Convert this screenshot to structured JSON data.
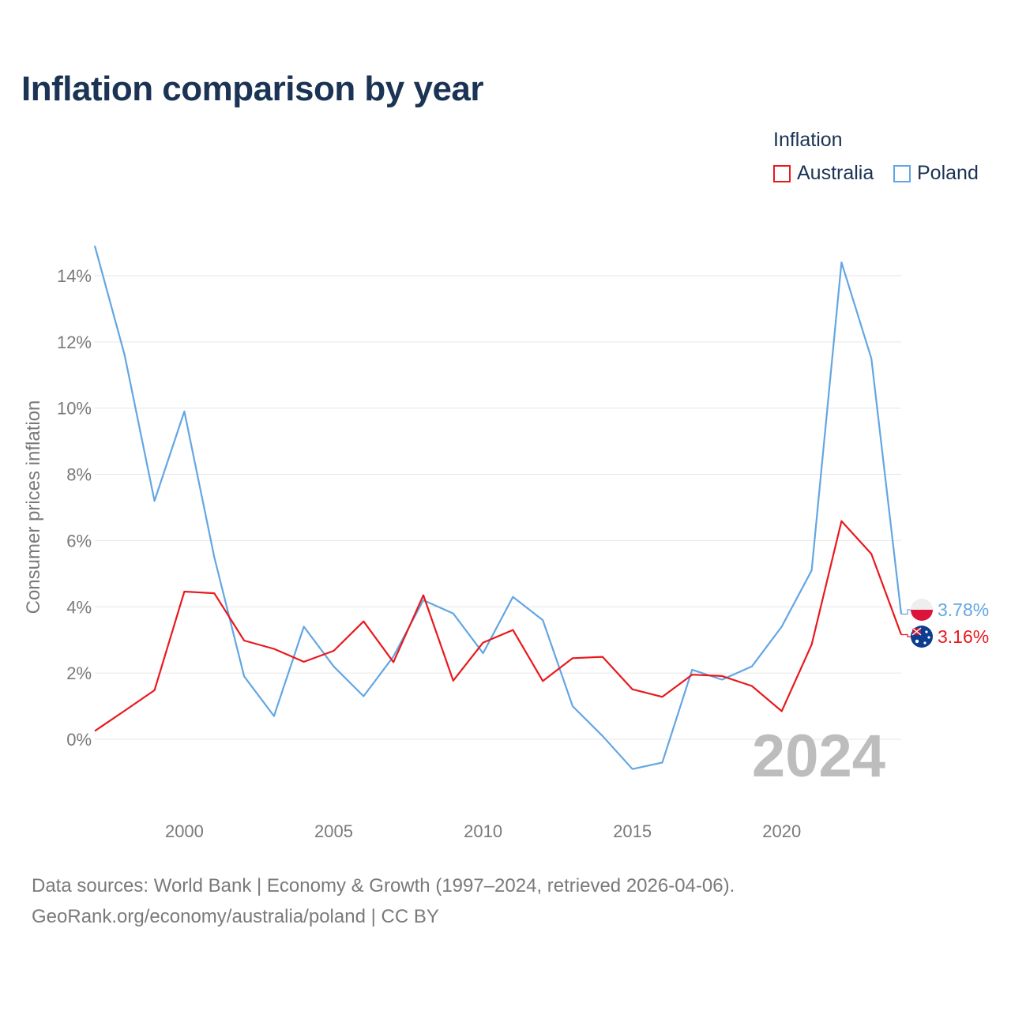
{
  "header": {
    "title": "Inflation comparison by year"
  },
  "legend": {
    "title": "Inflation",
    "items": [
      {
        "label": "Australia",
        "color": "#e8191e"
      },
      {
        "label": "Poland",
        "color": "#63a6e3"
      }
    ]
  },
  "footer": {
    "line1": "Data sources: World Bank | Economy & Growth (1997–2024, retrieved 2026-04-06).",
    "line2": "GeoRank.org/economy/australia/poland | CC BY"
  },
  "chart_data": {
    "type": "line",
    "title": "Inflation comparison by year",
    "xlabel": "",
    "ylabel": "Consumer prices inflation",
    "xlim": [
      1997,
      2024
    ],
    "ylim": [
      -2,
      15
    ],
    "grid": true,
    "x": [
      1997,
      1998,
      1999,
      2000,
      2001,
      2002,
      2003,
      2004,
      2005,
      2006,
      2007,
      2008,
      2009,
      2010,
      2011,
      2012,
      2013,
      2014,
      2015,
      2016,
      2017,
      2018,
      2019,
      2020,
      2021,
      2022,
      2023,
      2024
    ],
    "x_ticks": [
      2000,
      2005,
      2010,
      2015,
      2020
    ],
    "x_tick_labels": [
      "2000",
      "2005",
      "2010",
      "2015",
      "2020"
    ],
    "y_ticks": [
      0,
      2,
      4,
      6,
      8,
      10,
      12,
      14
    ],
    "y_tick_labels": [
      "0%",
      "2%",
      "4%",
      "6%",
      "8%",
      "10%",
      "12%",
      "14%"
    ],
    "series": [
      {
        "name": "Australia",
        "color": "#e8191e",
        "values": [
          0.25,
          0.86,
          1.48,
          4.46,
          4.41,
          2.98,
          2.73,
          2.34,
          2.67,
          3.56,
          2.33,
          4.35,
          1.77,
          2.92,
          3.3,
          1.76,
          2.45,
          2.49,
          1.51,
          1.28,
          1.95,
          1.91,
          1.61,
          0.85,
          2.86,
          6.59,
          5.6,
          3.16
        ],
        "end_label": "3.16%",
        "flag": "australia-flag"
      },
      {
        "name": "Poland",
        "color": "#63a6e3",
        "values": [
          14.9,
          11.6,
          7.2,
          9.9,
          5.5,
          1.9,
          0.7,
          3.4,
          2.2,
          1.3,
          2.5,
          4.2,
          3.8,
          2.6,
          4.3,
          3.6,
          1.0,
          0.1,
          -0.9,
          -0.7,
          2.1,
          1.8,
          2.2,
          3.4,
          5.1,
          14.4,
          11.5,
          3.78
        ],
        "end_label": "3.78%",
        "flag": "poland-flag"
      }
    ],
    "annotations": [
      {
        "text": "2024"
      }
    ]
  }
}
